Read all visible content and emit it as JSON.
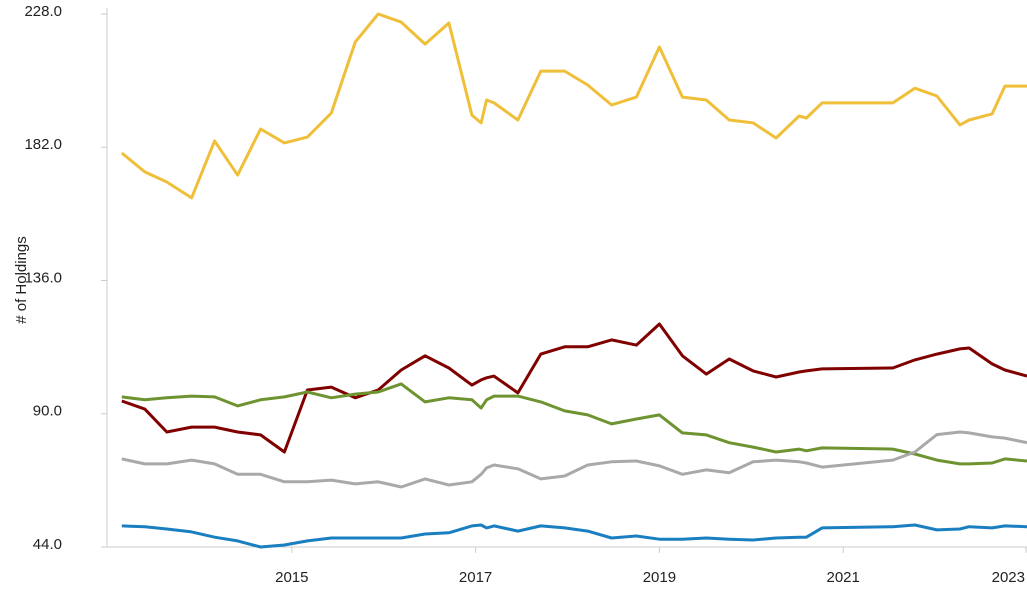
{
  "chart_data": {
    "type": "line",
    "y_label": "# of Holdings",
    "x": [
      2013.15,
      2013.4,
      2013.64,
      2013.91,
      2014.16,
      2014.41,
      2014.66,
      2014.92,
      2015.17,
      2015.43,
      2015.69,
      2015.94,
      2016.19,
      2016.45,
      2016.71,
      2016.96,
      2017.06,
      2017.12,
      2017.2,
      2017.46,
      2017.71,
      2017.97,
      2018.22,
      2018.48,
      2018.75,
      2019.0,
      2019.25,
      2019.51,
      2019.76,
      2020.02,
      2020.27,
      2020.52,
      2020.6,
      2020.77,
      2021.54,
      2021.78,
      2022.02,
      2022.27,
      2022.37,
      2022.62,
      2022.76,
      2023.0
    ],
    "series": [
      {
        "color": "#f0bf3a",
        "values": [
          180.0,
          173.5,
          170.0,
          164.5,
          184.2,
          172.4,
          188.3,
          183.5,
          185.5,
          193.8,
          218.3,
          228.0,
          225.2,
          217.6,
          224.9,
          193.1,
          190.4,
          198.3,
          197.3,
          191.4,
          208.3,
          208.3,
          203.5,
          196.6,
          199.3,
          216.6,
          199.3,
          198.3,
          191.4,
          190.4,
          185.2,
          192.8,
          192.1,
          197.3,
          197.3,
          202.4,
          199.7,
          189.7,
          191.4,
          193.5,
          203.1,
          203.1
        ]
      },
      {
        "color": "#800000",
        "values": [
          94.4,
          91.6,
          83.7,
          85.4,
          85.4,
          83.7,
          82.7,
          76.8,
          98.2,
          99.2,
          95.5,
          98.2,
          105.1,
          110.0,
          105.8,
          99.9,
          101.7,
          102.4,
          103.0,
          97.2,
          110.6,
          113.1,
          113.1,
          115.5,
          113.7,
          121.0,
          110.0,
          103.7,
          108.9,
          104.8,
          102.7,
          104.4,
          104.8,
          105.5,
          105.8,
          108.6,
          110.6,
          112.4,
          112.7,
          107.2,
          105.1,
          103.0
        ]
      },
      {
        "color": "#6e9431",
        "values": [
          95.8,
          94.8,
          95.5,
          96.1,
          95.8,
          92.7,
          94.8,
          95.8,
          97.5,
          95.5,
          96.8,
          97.5,
          100.3,
          94.1,
          95.5,
          94.8,
          92.0,
          94.8,
          96.1,
          96.1,
          94.1,
          91.0,
          89.6,
          86.5,
          88.2,
          89.6,
          83.4,
          82.7,
          80.0,
          78.5,
          76.8,
          77.8,
          77.2,
          78.2,
          77.8,
          76.1,
          74.0,
          72.7,
          72.7,
          73.0,
          74.4,
          73.7
        ]
      },
      {
        "color": "#a9a9a9",
        "values": [
          74.4,
          72.7,
          72.7,
          74.0,
          72.7,
          69.1,
          69.1,
          66.5,
          66.5,
          67.1,
          65.8,
          66.5,
          64.7,
          67.5,
          65.4,
          66.5,
          69.1,
          71.3,
          72.3,
          71.0,
          67.5,
          68.5,
          72.3,
          73.4,
          73.7,
          72.0,
          69.1,
          70.6,
          69.6,
          73.4,
          74.0,
          73.4,
          73.0,
          71.6,
          74.0,
          76.8,
          82.8,
          83.7,
          83.4,
          82.0,
          81.6,
          80.0
        ]
      },
      {
        "color": "#1a7fc1",
        "values": [
          51.3,
          51.0,
          50.2,
          49.2,
          47.4,
          46.1,
          44.0,
          44.7,
          46.1,
          47.1,
          47.1,
          47.1,
          47.1,
          48.5,
          48.9,
          51.3,
          51.6,
          50.6,
          51.3,
          49.5,
          51.3,
          50.6,
          49.5,
          47.1,
          47.8,
          46.7,
          46.7,
          47.1,
          46.7,
          46.4,
          47.1,
          47.4,
          47.4,
          50.6,
          51.0,
          51.6,
          49.9,
          50.2,
          51.0,
          50.6,
          51.3,
          51.0
        ]
      }
    ],
    "xlim": [
      2013,
      2023
    ],
    "xticks": [
      2015,
      2017,
      2019,
      2021,
      2023
    ],
    "ylim": [
      44,
      228
    ],
    "yticks": [
      {
        "value": 44,
        "label": "44.0"
      },
      {
        "value": 90,
        "label": "90.0"
      },
      {
        "value": 136,
        "label": "136.0"
      },
      {
        "value": 182,
        "label": "182.0"
      },
      {
        "value": 228,
        "label": "228.0"
      }
    ],
    "grid": false
  }
}
